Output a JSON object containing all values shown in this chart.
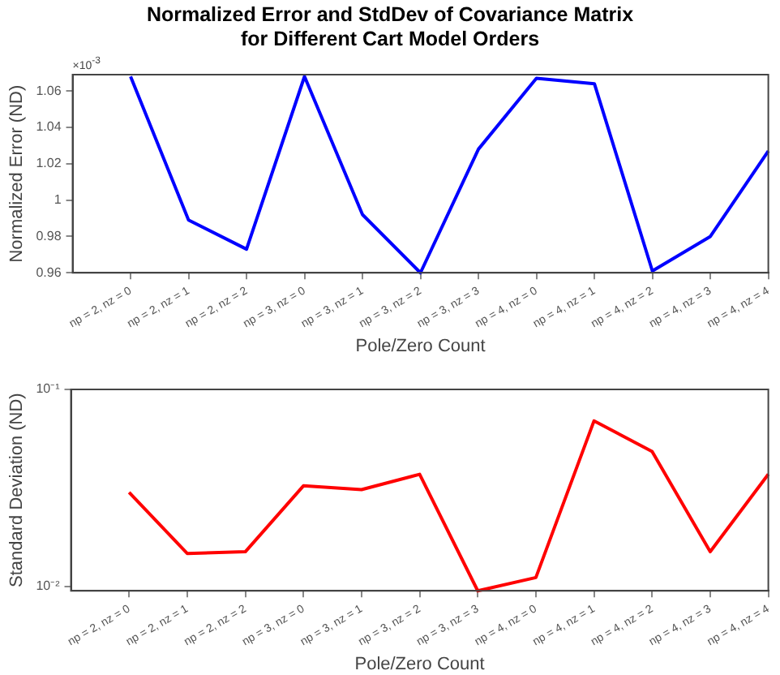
{
  "chart_data": [
    {
      "type": "line",
      "title": "Normalized Error and StdDev of Covariance Matrix\nfor Different Cart Model Orders",
      "xlabel": "Pole/Zero Count",
      "ylabel": "Normalized Error (ND)",
      "categories": [
        "np = 2, nz = 0",
        "np = 2, nz = 1",
        "np = 2, nz = 2",
        "np = 3, nz = 0",
        "np = 3, nz = 1",
        "np = 3, nz = 2",
        "np = 3, nz = 3",
        "np = 4, nz = 0",
        "np = 4, nz = 1",
        "np = 4, nz = 2",
        "np = 4, nz = 3",
        "np = 4, nz = 4"
      ],
      "series": [
        {
          "color": "#0000ff",
          "values": [
            1.068,
            0.989,
            0.973,
            1.068,
            0.992,
            0.96,
            1.028,
            1.067,
            1.064,
            0.961,
            0.98,
            1.027
          ]
        }
      ],
      "ylim": [
        0.96,
        1.069
      ],
      "yticks": [
        0.96,
        0.98,
        1,
        1.02,
        1.04,
        1.06
      ],
      "annotations": [
        "×10$^{-3}$"
      ],
      "grid": false,
      "marker": "none",
      "line_style": "solid"
    },
    {
      "type": "line",
      "xlabel": "Pole/Zero Count",
      "ylabel": "Standard Deviation (ND)",
      "categories": [
        "np = 2, nz = 0",
        "np = 2, nz = 1",
        "np = 2, nz = 2",
        "np = 3, nz = 0",
        "np = 3, nz = 1",
        "np = 3, nz = 2",
        "np = 3, nz = 3",
        "np = 4, nz = 0",
        "np = 4, nz = 1",
        "np = 4, nz = 2",
        "np = 4, nz = 3",
        "np = 4, nz = 4"
      ],
      "series": [
        {
          "color": "#ff0000",
          "values": [
            0.03,
            0.0147,
            0.015,
            0.0324,
            0.031,
            0.0371,
            0.0095,
            0.0111,
            0.0692,
            0.0484,
            0.015,
            0.0371
          ]
        }
      ],
      "ylim": [
        0.0095,
        0.1
      ],
      "yticks": [
        {
          "value": 0.01,
          "label": "10⁻²"
        },
        {
          "value": 0.1,
          "label": "10⁻¹"
        }
      ],
      "log": "y",
      "grid": false,
      "marker": "none",
      "line_style": "solid"
    }
  ]
}
